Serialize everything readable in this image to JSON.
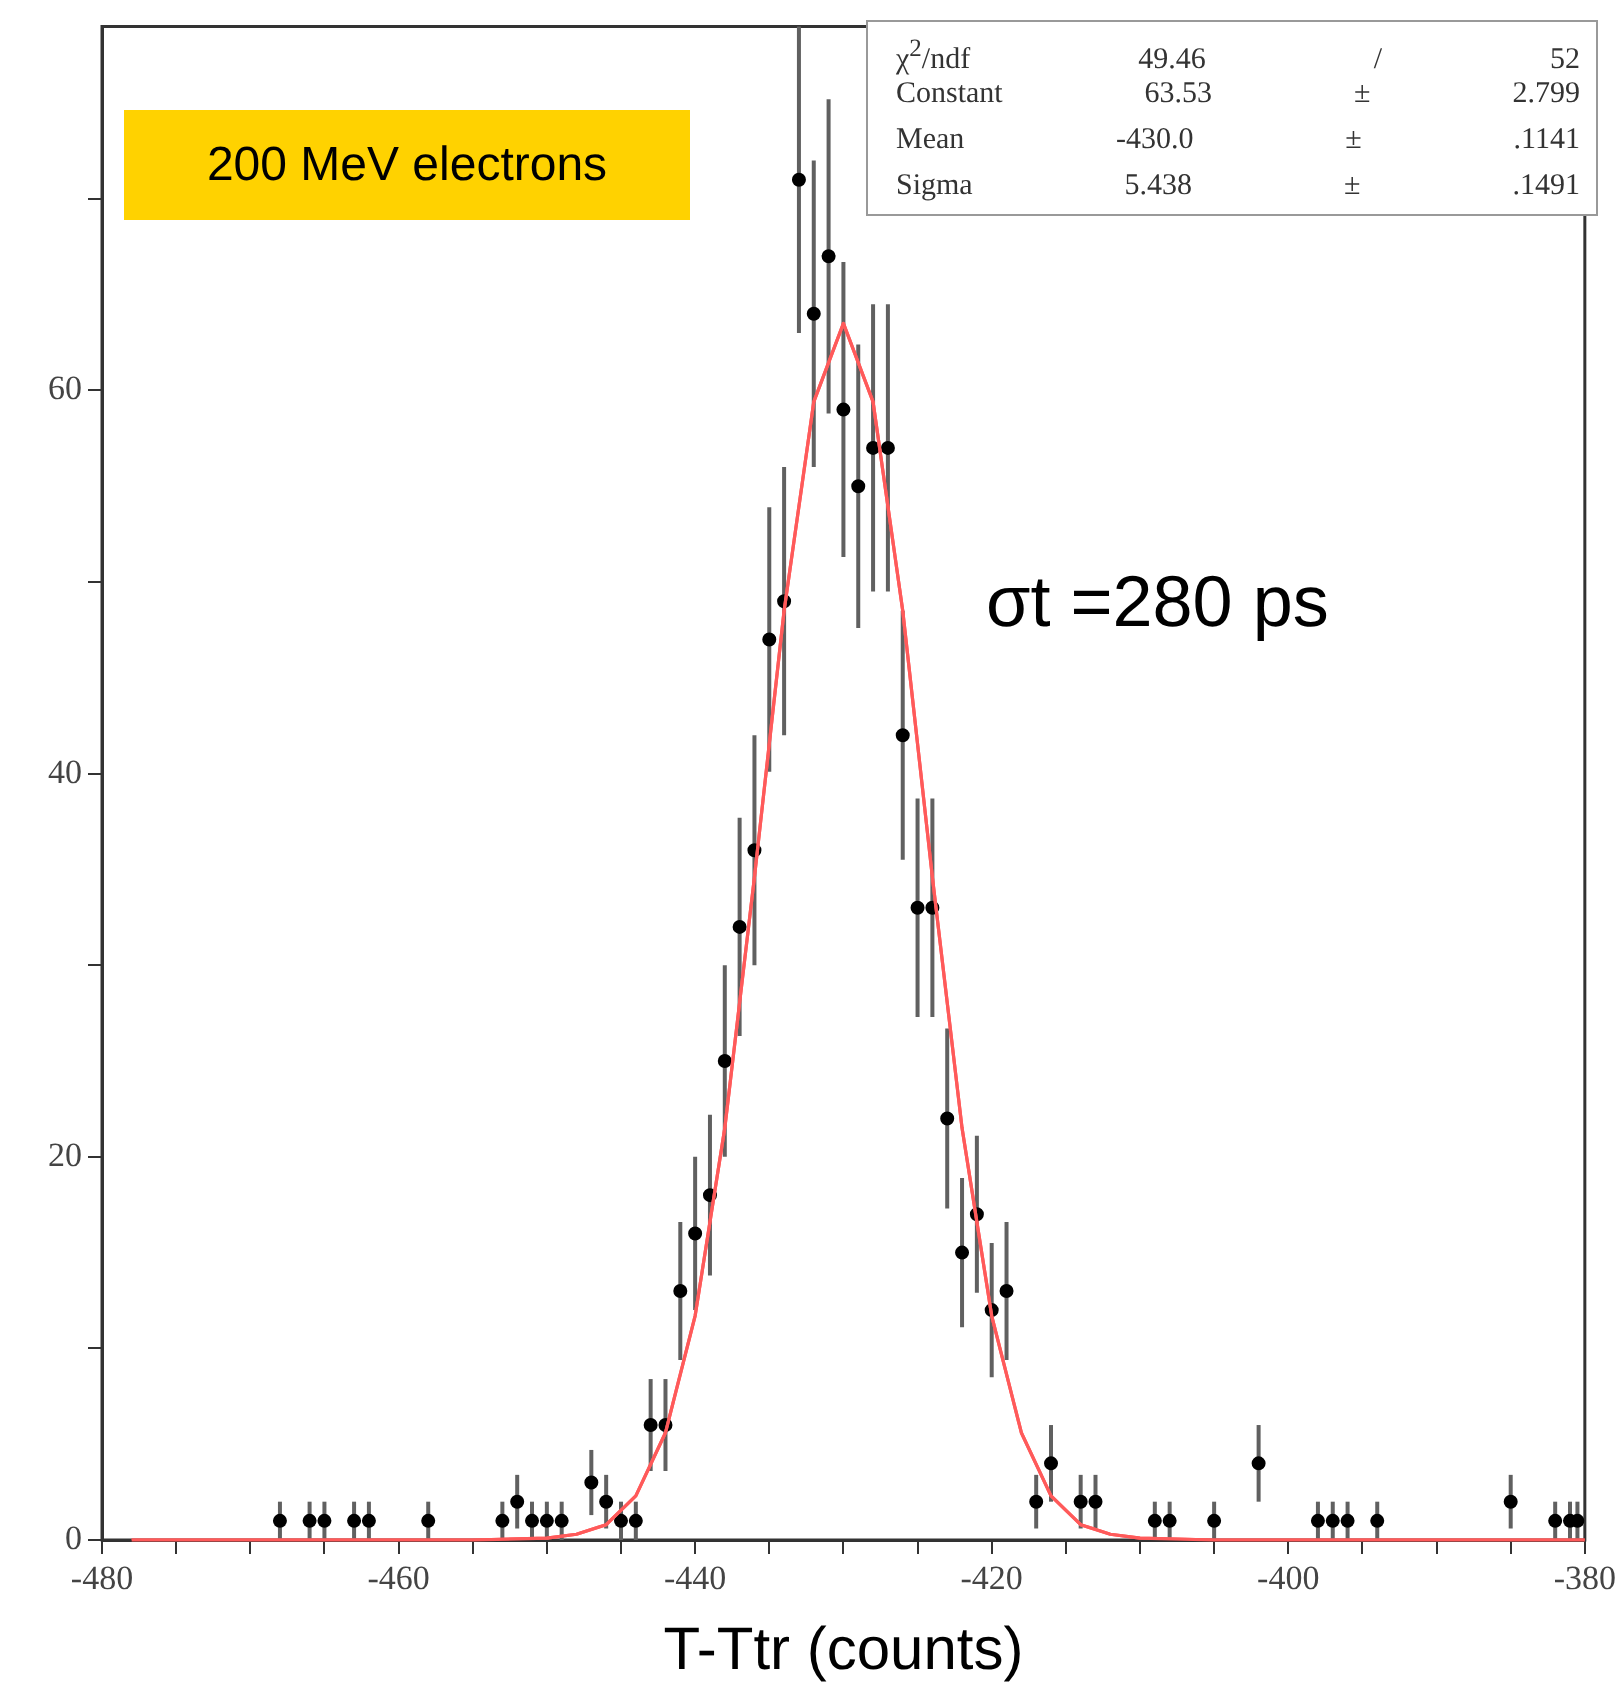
{
  "chart_data": {
    "type": "scatter",
    "xlabel": "T-Ttr (counts)",
    "xlim": [
      -480,
      -380
    ],
    "xticks": [
      -480,
      {
        "value": -475,
        "label": null
      },
      {
        "value": -470,
        "label": null
      },
      {
        "value": -465,
        "label": null
      },
      -460,
      {
        "value": -455,
        "label": null
      },
      {
        "value": -450,
        "label": null
      },
      {
        "value": -445,
        "label": null
      },
      -440,
      {
        "value": -435,
        "label": null
      },
      {
        "value": -430,
        "label": null
      },
      {
        "value": -425,
        "label": null
      },
      -420,
      {
        "value": -415,
        "label": null
      },
      {
        "value": -410,
        "label": null
      },
      {
        "value": -405,
        "label": null
      },
      -400,
      {
        "value": -395,
        "label": null
      },
      {
        "value": -390,
        "label": null
      },
      {
        "value": -385,
        "label": null
      },
      -380
    ],
    "ylim": [
      0,
      79
    ],
    "yticks": [
      0,
      {
        "value": 10,
        "label": null
      },
      20,
      {
        "value": 30,
        "label": null
      },
      40,
      {
        "value": 50,
        "label": null
      },
      60,
      {
        "value": 70,
        "label": null
      }
    ],
    "legend": false,
    "series": [
      {
        "color": "#000000",
        "marker": "circle",
        "x": [
          -468,
          -466,
          -465,
          -463,
          -462,
          -458,
          -453,
          -452,
          -451,
          -450,
          -449,
          -447,
          -446,
          -445,
          -444,
          -443,
          -442,
          -441,
          -440,
          -439,
          -438,
          -437,
          -436,
          -435,
          -434,
          -433,
          -432,
          -431,
          -430,
          -429,
          -428,
          -427,
          -426,
          -425,
          -424,
          -423,
          -422,
          -421,
          -420,
          -419,
          -417,
          -416,
          -414,
          -413,
          -409,
          -408,
          -405,
          -402,
          -398,
          -397,
          -396,
          -394,
          -385,
          -382,
          -381,
          -380.5
        ],
        "values": [
          1,
          1,
          1,
          1,
          1,
          1,
          1,
          2,
          1,
          1,
          1,
          3,
          2,
          1,
          1,
          6,
          6,
          13,
          16,
          18,
          25,
          32,
          36,
          47,
          49,
          71,
          64,
          67,
          59,
          55,
          57,
          57,
          42,
          33,
          33,
          22,
          15,
          17,
          12,
          13,
          2,
          4,
          2,
          2,
          1,
          1,
          1,
          4,
          1,
          1,
          1,
          1,
          2,
          1,
          1,
          1
        ],
        "errors": [
          1,
          1,
          1,
          1,
          1,
          1,
          1,
          1.4,
          1,
          1,
          1,
          1.7,
          1.4,
          1,
          1,
          2.4,
          2.4,
          3.6,
          4,
          4.2,
          5,
          5.7,
          6,
          6.9,
          7,
          8,
          8,
          8.2,
          7.7,
          7.4,
          7.5,
          7.5,
          6.5,
          5.7,
          5.7,
          4.7,
          3.9,
          4.1,
          3.5,
          3.6,
          1.4,
          2,
          1.4,
          1.4,
          1,
          1,
          1,
          2,
          1,
          1,
          1,
          1,
          1.4,
          1,
          1,
          1
        ]
      },
      {
        "type": "line",
        "color": "#ff5a5a",
        "marker": "none",
        "line_style": "solid",
        "x": [
          -478,
          -455,
          -450,
          -448,
          -446,
          -444,
          -442,
          -440,
          -438,
          -436,
          -434,
          -432,
          -430,
          -428,
          -426,
          -424,
          -422,
          -420,
          -418,
          -416,
          -414,
          -412,
          -410,
          -405,
          -380
        ],
        "values": [
          0,
          0,
          0.1,
          0.3,
          0.8,
          2.3,
          5.6,
          11.7,
          21.5,
          34.6,
          48.5,
          59.4,
          63.5,
          59.4,
          48.5,
          34.6,
          21.5,
          11.7,
          5.6,
          2.3,
          0.8,
          0.3,
          0.1,
          0,
          0
        ]
      }
    ],
    "annotations": [
      "200 MeV electrons",
      "σt =280 ps",
      "χ$^{2}$/ndf 49.46 / 52",
      "Constant 63.53 ± 2.799",
      "Mean -430.0 ± .1141",
      "Sigma 5.438 ± .1491"
    ]
  }
}
